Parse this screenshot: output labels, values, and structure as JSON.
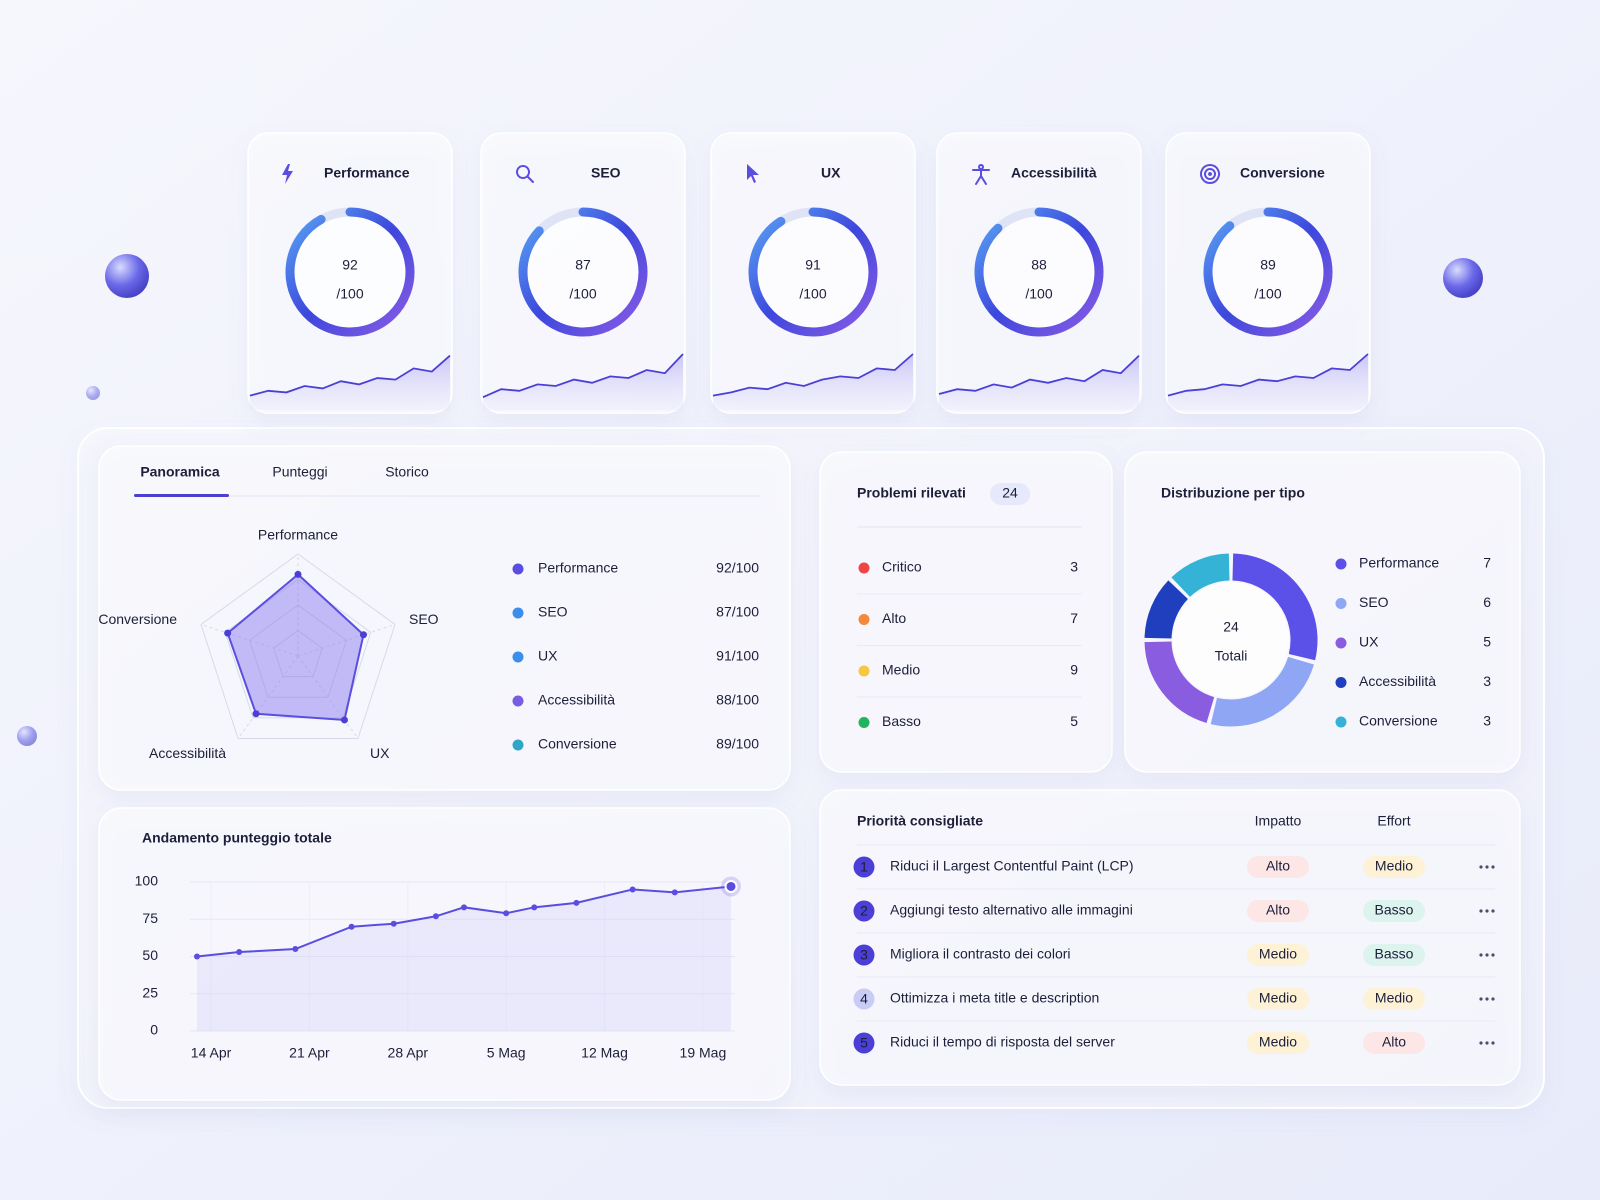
{
  "score_cards": [
    {
      "label": "Performance",
      "score": 92,
      "max_label": "/100",
      "trend": [
        18,
        24,
        22,
        30,
        27,
        36,
        32,
        40,
        38,
        52,
        48,
        68
      ]
    },
    {
      "label": "SEO",
      "score": 87,
      "max_label": "/100",
      "trend": [
        16,
        26,
        24,
        32,
        30,
        38,
        34,
        42,
        40,
        50,
        46,
        70
      ]
    },
    {
      "label": "UX",
      "score": 91,
      "max_label": "/100",
      "trend": [
        18,
        22,
        28,
        26,
        34,
        30,
        38,
        42,
        40,
        52,
        50,
        70
      ]
    },
    {
      "label": "Accessibilità",
      "score": 88,
      "max_label": "/100",
      "trend": [
        20,
        26,
        24,
        32,
        28,
        38,
        34,
        40,
        36,
        50,
        46,
        68
      ]
    },
    {
      "label": "Conversione",
      "score": 89,
      "max_label": "/100",
      "trend": [
        18,
        24,
        26,
        32,
        30,
        38,
        36,
        42,
        40,
        52,
        50,
        70
      ]
    }
  ],
  "trend_ylim": [
    0,
    100
  ],
  "gauge_max": 100,
  "tabs": [
    "Panoramica",
    "Punteggi",
    "Storico"
  ],
  "radar": {
    "type": "radar",
    "categories": [
      "Performance",
      "SEO",
      "UX",
      "Accessibilità",
      "Conversione"
    ],
    "values": [
      92,
      87,
      91,
      88,
      89
    ],
    "value_labels": [
      "92/100",
      "87/100",
      "91/100",
      "88/100",
      "89/100"
    ],
    "rlim": [
      60,
      100
    ],
    "rticks": [
      70,
      80,
      90,
      100
    ],
    "colors": [
      "#5b4de0",
      "#3b8eea",
      "#3b8eea",
      "#7a5ce0",
      "#2fa6c9"
    ],
    "fill": "#8b7df0"
  },
  "trend": {
    "type": "line",
    "title": "Andamento punteggio totale",
    "x": [
      -1,
      2,
      6,
      10,
      13,
      16,
      18,
      21,
      23,
      26,
      30,
      33,
      37
    ],
    "values": [
      50,
      53,
      55,
      70,
      72,
      77,
      83,
      79,
      83,
      86,
      95,
      93,
      97
    ],
    "xlim": [
      -1,
      37
    ],
    "xticks": [
      {
        "value": 0,
        "label": "14 Apr"
      },
      {
        "value": 7,
        "label": "21 Apr"
      },
      {
        "value": 14,
        "label": "28 Apr"
      },
      {
        "value": 21,
        "label": "5 Mag"
      },
      {
        "value": 28,
        "label": "12 Mag"
      },
      {
        "value": 35,
        "label": "19 Mag"
      }
    ],
    "ylim": [
      0,
      100
    ],
    "yticks": [
      0,
      25,
      50,
      75,
      100
    ],
    "color": "#5b4de0",
    "grid": true
  },
  "problems": {
    "title": "Problemi rilevati",
    "total": 24,
    "items": [
      {
        "name": "Critico",
        "value": 3,
        "color": "#ef4444"
      },
      {
        "name": "Alto",
        "value": 7,
        "color": "#f5883a"
      },
      {
        "name": "Medio",
        "value": 9,
        "color": "#f5c842"
      },
      {
        "name": "Basso",
        "value": 5,
        "color": "#22b35e"
      }
    ]
  },
  "distribution": {
    "type": "donut",
    "title": "Distribuzione per tipo",
    "total": 24,
    "total_label": "Totali",
    "categories": [
      "Performance",
      "SEO",
      "UX",
      "Accessibilità",
      "Conversione"
    ],
    "values": [
      7,
      6,
      5,
      3,
      3
    ],
    "colors": [
      "#5b50e8",
      "#8fa6f5",
      "#8a5ce0",
      "#1f3fbf",
      "#35b3d6"
    ]
  },
  "priorities": {
    "title": "Priorità consigliate",
    "headers": [
      "Impatto",
      "Effort"
    ],
    "rows": [
      {
        "n": 1,
        "text": "Riduci il Largest Contentful Paint (LCP)",
        "impact": "Alto",
        "effort": "Medio"
      },
      {
        "n": 2,
        "text": "Aggiungi testo alternativo alle immagini",
        "impact": "Alto",
        "effort": "Basso"
      },
      {
        "n": 3,
        "text": "Migliora il contrasto dei colori",
        "impact": "Medio",
        "effort": "Basso"
      },
      {
        "n": 4,
        "text": "Ottimizza i meta title e description",
        "impact": "Medio",
        "effort": "Medio"
      },
      {
        "n": 5,
        "text": "Riduci il tempo di risposta del server",
        "impact": "Medio",
        "effort": "Alto"
      }
    ],
    "badge_colors": {
      "Alto": [
        "#fde6e6",
        "#e5484d"
      ],
      "Medio": [
        "#fdf2d6",
        "#e0a02e"
      ],
      "Basso": [
        "#dcf3ee",
        "#2a9d8f"
      ]
    }
  }
}
